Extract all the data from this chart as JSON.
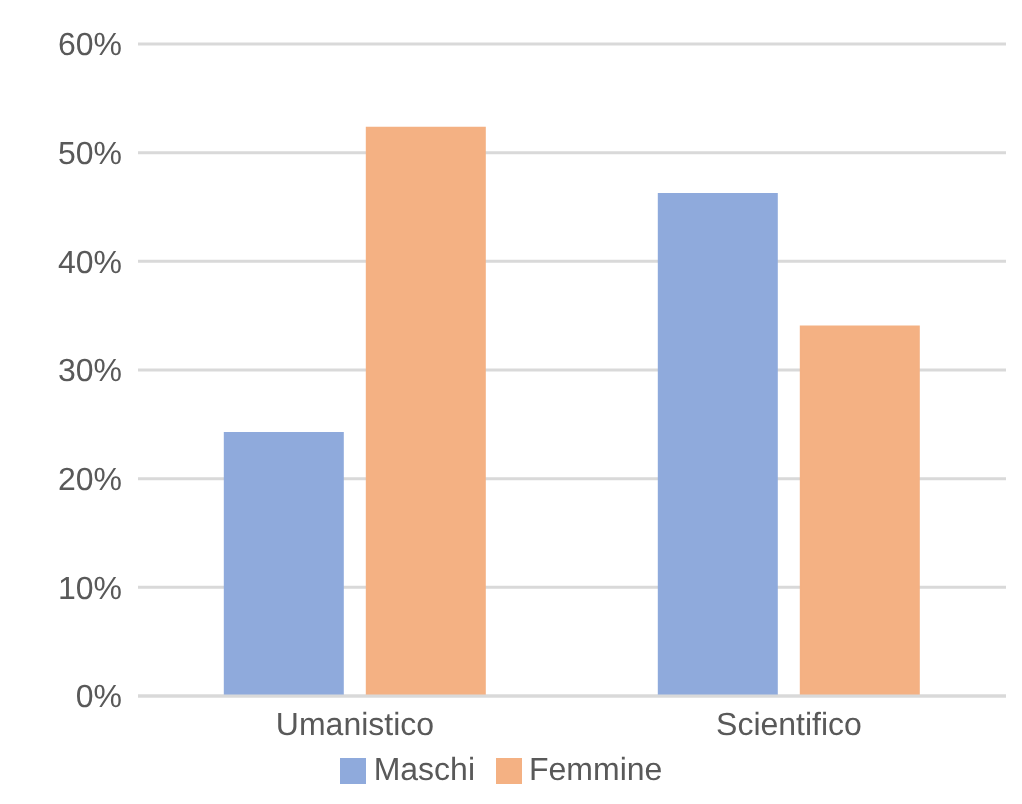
{
  "chart_data": {
    "type": "bar",
    "categories": [
      "Umanistico",
      "Scientifico"
    ],
    "series": [
      {
        "name": "Maschi",
        "color": "#8faadc",
        "values": [
          24.2,
          46.2
        ]
      },
      {
        "name": "Femmine",
        "color": "#f4b183",
        "values": [
          52.3,
          34.0
        ]
      }
    ],
    "ylim": [
      0,
      60
    ],
    "yticks": [
      {
        "value": 0,
        "label": "0%"
      },
      {
        "value": 10,
        "label": "10%"
      },
      {
        "value": 20,
        "label": "20%"
      },
      {
        "value": 30,
        "label": "30%"
      },
      {
        "value": 40,
        "label": "40%"
      },
      {
        "value": 50,
        "label": "50%"
      },
      {
        "value": 60,
        "label": "60%"
      }
    ],
    "grid": "y",
    "legend": "bottom"
  }
}
